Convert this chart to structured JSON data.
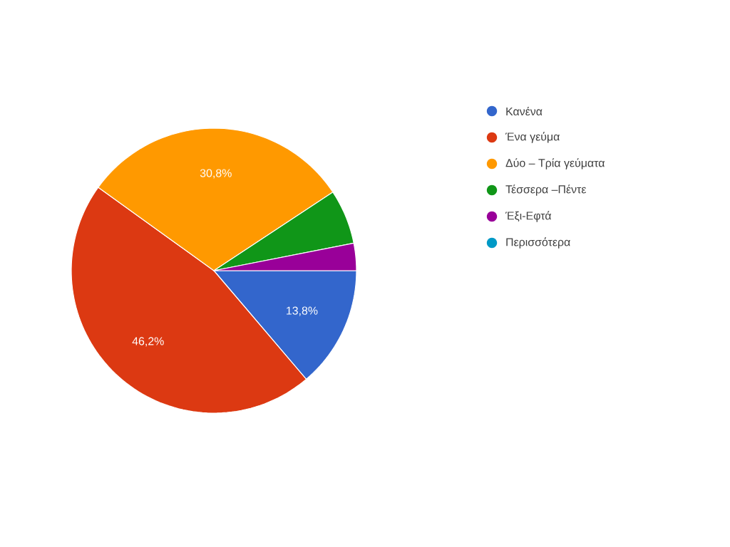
{
  "chart_data": {
    "type": "pie",
    "categories": [
      "Κανένα",
      "Ένα γεύμα",
      "Δύο – Τρία γεύματα",
      "Τέσσερα –Πέντε",
      "Έξι-Εφτά",
      "Περισσότερα"
    ],
    "values": [
      13.8,
      46.2,
      30.8,
      6.2,
      3.1,
      0
    ],
    "colors": [
      "#3366cc",
      "#dc3912",
      "#ff9900",
      "#109618",
      "#990099",
      "#0099c6"
    ],
    "value_labels": [
      "13,8%",
      "46,2%",
      "30,8%",
      null,
      null,
      null
    ],
    "legend": "right"
  }
}
